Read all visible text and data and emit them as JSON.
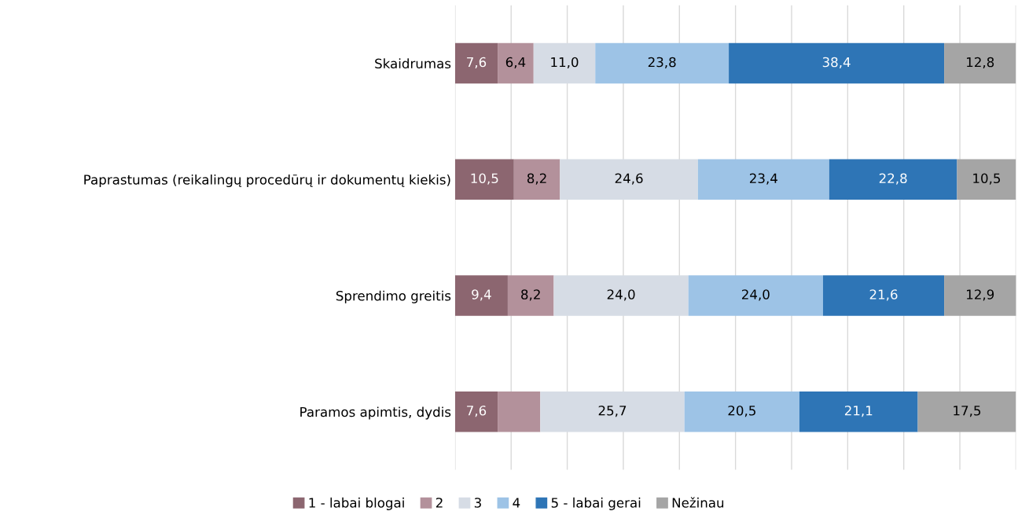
{
  "chart_data": {
    "type": "bar",
    "orientation": "horizontal",
    "stacked": true,
    "categories": [
      "Skaidrumas",
      "Paprastumas (reikalingų procedūrų ir dokumentų kiekis)",
      "Sprendimo greitis",
      "Paramos apimtis, dydis"
    ],
    "xlim": [
      0,
      100
    ],
    "xticks": [
      {
        "value": 0,
        "label": null
      },
      {
        "value": 10,
        "label": null
      },
      {
        "value": 20,
        "label": null
      },
      {
        "value": 30,
        "label": null
      },
      {
        "value": 40,
        "label": null
      },
      {
        "value": 50,
        "label": null
      },
      {
        "value": 60,
        "label": null
      },
      {
        "value": 70,
        "label": null
      },
      {
        "value": 80,
        "label": null
      },
      {
        "value": 90,
        "label": null
      },
      {
        "value": 100,
        "label": null
      }
    ],
    "tick_labels": "y",
    "grid": "x",
    "legend": "bottom",
    "series": [
      {
        "name": "1 - labai blogai",
        "color": "#8c6670",
        "values": [
          7.6,
          10.5,
          9.4,
          7.6
        ],
        "value_labels": [
          "7,6",
          "10,5",
          "9,4",
          "7,6"
        ]
      },
      {
        "name": "2",
        "color": "#b3919b",
        "values": [
          6.4,
          8.2,
          8.2,
          7.6
        ],
        "value_labels": [
          "6,4",
          "8,2",
          "8,2",
          null
        ]
      },
      {
        "name": "3",
        "color": "#d6dce5",
        "values": [
          11.0,
          24.6,
          24.0,
          25.7
        ],
        "value_labels": [
          "11,0",
          "24,6",
          "24,0",
          "25,7"
        ]
      },
      {
        "name": "4",
        "color": "#9dc3e6",
        "values": [
          23.8,
          23.4,
          24.0,
          20.5
        ],
        "value_labels": [
          "23,8",
          "23,4",
          "24,0",
          "20,5"
        ]
      },
      {
        "name": "5 - labai gerai",
        "color": "#2e75b6",
        "values": [
          38.4,
          22.8,
          21.6,
          21.1
        ],
        "value_labels": [
          "38,4",
          "22,8",
          "21,6",
          "21,1"
        ]
      },
      {
        "name": "Nežinau",
        "color": "#a5a5a5",
        "values": [
          12.8,
          10.5,
          12.9,
          17.5
        ],
        "value_labels": [
          "12,8",
          "10,5",
          "12,9",
          "17,5"
        ]
      }
    ]
  }
}
